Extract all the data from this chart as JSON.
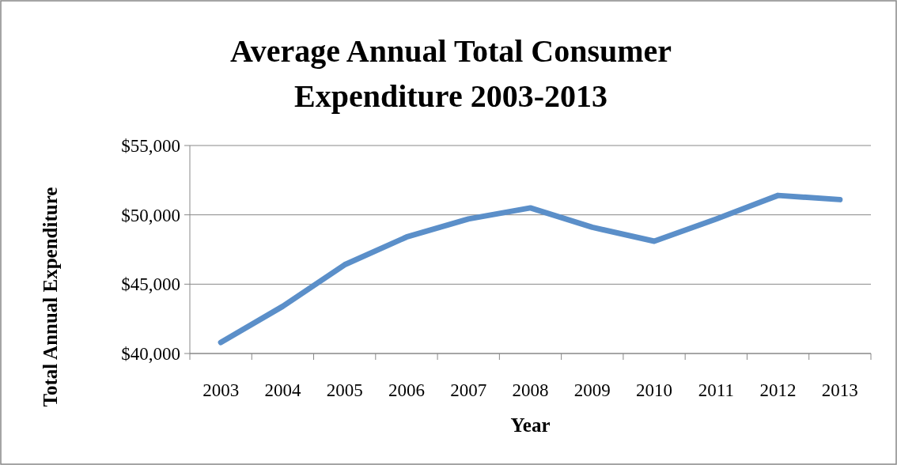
{
  "chart_data": {
    "type": "line",
    "title": "Average Annual Total Consumer Expenditure 2003-2013",
    "xlabel": "Year",
    "ylabel": "Total Annual Expenditure",
    "categories": [
      "2003",
      "2004",
      "2005",
      "2006",
      "2007",
      "2008",
      "2009",
      "2010",
      "2011",
      "2012",
      "2013"
    ],
    "series": [
      {
        "color": "#5b8fc9",
        "values": [
          40800,
          43400,
          46400,
          48400,
          49700,
          50500,
          49100,
          48100,
          49700,
          51400,
          51100
        ]
      }
    ],
    "ylim": [
      40000,
      55000
    ],
    "yticks": [
      {
        "value": 40000,
        "label": "$40,000"
      },
      {
        "value": 45000,
        "label": "$45,000"
      },
      {
        "value": 50000,
        "label": "$50,000"
      },
      {
        "value": 55000,
        "label": "$55,000"
      }
    ],
    "grid": "y",
    "marker": "none",
    "line_style": "solid"
  }
}
